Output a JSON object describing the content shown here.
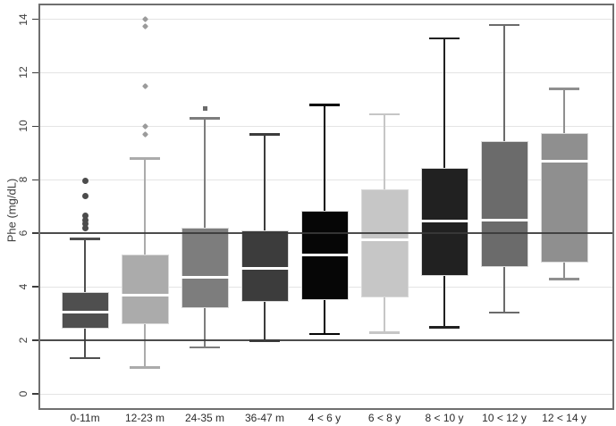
{
  "colors": {
    "grid": "#e4e4e4",
    "reference_line": "#3a3a3a",
    "axis_border": "#6f6f6f",
    "tick_mark": "#3d3d3d",
    "tick_text": "#3d3d3d",
    "label_text": "#2b2b2b",
    "median": "#ffffff",
    "box_outline": "#d9d9d9"
  },
  "chart_data": {
    "type": "boxplot",
    "title": "",
    "xlabel": "",
    "ylabel": "Phe (mg/dL)",
    "ylim": [
      0,
      14
    ],
    "yticks": [
      0,
      2,
      4,
      6,
      8,
      10,
      12,
      14
    ],
    "reference_lines": [
      2,
      6
    ],
    "grid": true,
    "legend": "none",
    "categories": [
      "0-11m",
      "12-23 m",
      "24-35 m",
      "36-47 m",
      "4 < 6 y",
      "6 < 8 y",
      "8 < 10 y",
      "10 < 12 y",
      "12 < 14 y"
    ],
    "series": [
      {
        "name": "0-11m",
        "color": "#4f4f4f",
        "whisker_low": 1.35,
        "q1": 2.45,
        "median": 3.05,
        "q3": 3.8,
        "whisker_high": 5.8,
        "outliers": [
          6.2,
          6.35,
          6.5,
          6.65,
          7.4,
          7.95
        ],
        "outlier_marker": "circle",
        "outlier_color": "#4c4c4c"
      },
      {
        "name": "12-23 m",
        "color": "#ababab",
        "whisker_low": 1.0,
        "q1": 2.6,
        "median": 3.7,
        "q3": 5.2,
        "whisker_high": 8.8,
        "outliers": [
          9.7,
          10.0,
          11.5,
          13.75,
          14.0
        ],
        "outlier_marker": "diamond",
        "outlier_color": "#9b9b9b"
      },
      {
        "name": "24-35 m",
        "color": "#7d7d7d",
        "whisker_low": 1.75,
        "q1": 3.2,
        "median": 4.35,
        "q3": 6.2,
        "whisker_high": 10.3,
        "outliers": [
          10.65
        ],
        "outlier_marker": "square",
        "outlier_color": "#6b6b6b"
      },
      {
        "name": "36-47 m",
        "color": "#3c3c3c",
        "whisker_low": 2.0,
        "q1": 3.45,
        "median": 4.7,
        "q3": 6.1,
        "whisker_high": 9.7,
        "outliers": [],
        "outlier_marker": "circle",
        "outlier_color": "#3c3c3c"
      },
      {
        "name": "4 < 6 y",
        "color": "#060606",
        "whisker_low": 2.25,
        "q1": 3.5,
        "median": 5.2,
        "q3": 6.85,
        "whisker_high": 10.8,
        "outliers": [],
        "outlier_marker": "circle",
        "outlier_color": "#060606"
      },
      {
        "name": "6 < 8 y",
        "color": "#c6c6c6",
        "whisker_low": 2.3,
        "q1": 3.6,
        "median": 5.75,
        "q3": 7.65,
        "whisker_high": 10.45,
        "outliers": [],
        "outlier_marker": "circle",
        "outlier_color": "#c6c6c6"
      },
      {
        "name": "8 < 10 y",
        "color": "#212121",
        "whisker_low": 2.5,
        "q1": 4.4,
        "median": 6.45,
        "q3": 8.45,
        "whisker_high": 13.3,
        "outliers": [],
        "outlier_marker": "circle",
        "outlier_color": "#212121"
      },
      {
        "name": "10 < 12 y",
        "color": "#6b6b6b",
        "whisker_low": 3.05,
        "q1": 4.75,
        "median": 6.5,
        "q3": 9.45,
        "whisker_high": 13.8,
        "outliers": [],
        "outlier_marker": "circle",
        "outlier_color": "#6b6b6b"
      },
      {
        "name": "12 < 14 y",
        "color": "#8f8f8f",
        "whisker_low": 4.3,
        "q1": 4.9,
        "median": 8.7,
        "q3": 9.75,
        "whisker_high": 11.4,
        "outliers": [],
        "outlier_marker": "circle",
        "outlier_color": "#8f8f8f"
      }
    ]
  }
}
